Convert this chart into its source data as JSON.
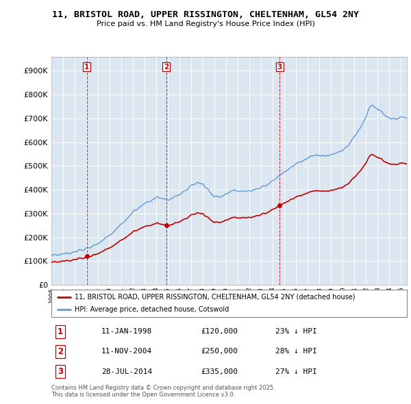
{
  "title": "11, BRISTOL ROAD, UPPER RISSINGTON, CHELTENHAM, GL54 2NY",
  "subtitle": "Price paid vs. HM Land Registry's House Price Index (HPI)",
  "ytick_values": [
    0,
    100000,
    200000,
    300000,
    400000,
    500000,
    600000,
    700000,
    800000,
    900000
  ],
  "ylim": [
    0,
    960000
  ],
  "xlim_start": 1995.0,
  "xlim_end": 2025.5,
  "hpi_color": "#5b9bd5",
  "price_color": "#c00000",
  "vline_color": "#c00000",
  "legend_label_price": "11, BRISTOL ROAD, UPPER RISSINGTON, CHELTENHAM, GL54 2NY (detached house)",
  "legend_label_hpi": "HPI: Average price, detached house, Cotswold",
  "sales": [
    {
      "num": 1,
      "date": "11-JAN-1998",
      "year": 1998.04,
      "price": 120000,
      "pct": "23%",
      "dir": "↓"
    },
    {
      "num": 2,
      "date": "11-NOV-2004",
      "year": 2004.87,
      "price": 250000,
      "pct": "28%",
      "dir": "↓"
    },
    {
      "num": 3,
      "date": "28-JUL-2014",
      "year": 2014.58,
      "price": 335000,
      "pct": "27%",
      "dir": "↓"
    }
  ],
  "footnote": "Contains HM Land Registry data © Crown copyright and database right 2025.\nThis data is licensed under the Open Government Licence v3.0.",
  "background_color": "#ffffff",
  "chart_bg_color": "#dce6f1",
  "grid_color": "#ffffff"
}
